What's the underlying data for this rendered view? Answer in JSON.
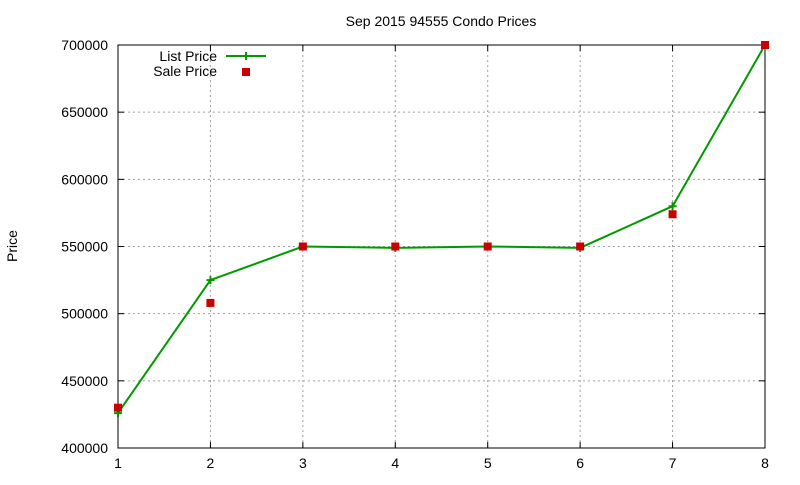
{
  "chart_data": {
    "type": "line",
    "title": "Sep 2015 94555 Condo Prices",
    "xlabel": "",
    "ylabel": "Price",
    "x": [
      1,
      2,
      3,
      4,
      5,
      6,
      7,
      8
    ],
    "xlim": [
      1,
      8
    ],
    "ylim": [
      400000,
      700000
    ],
    "xticks": [
      1,
      2,
      3,
      4,
      5,
      6,
      7,
      8
    ],
    "yticks": [
      400000,
      450000,
      500000,
      550000,
      600000,
      650000,
      700000
    ],
    "grid": true,
    "legend_position": "top-left",
    "series": [
      {
        "name": "List Price",
        "style": "line-with-plus-markers",
        "color": "#009900",
        "values": [
          426000,
          525000,
          550000,
          549000,
          550000,
          549000,
          580000,
          700000
        ]
      },
      {
        "name": "Sale Price",
        "style": "square-markers",
        "color": "#cc0000",
        "values": [
          430000,
          508000,
          550000,
          550000,
          550000,
          550000,
          574000,
          700000
        ]
      }
    ]
  }
}
